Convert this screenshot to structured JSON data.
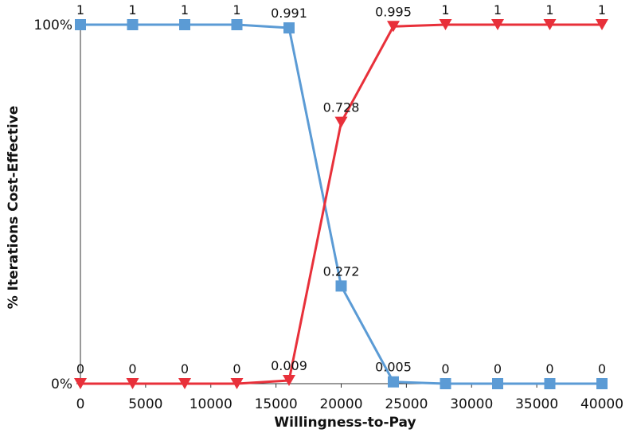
{
  "chart_data": {
    "type": "line",
    "title": "",
    "xlabel": "Willingness-to-Pay",
    "ylabel": "% Iterations Cost-Effective",
    "xlim": [
      0,
      40000
    ],
    "ylim": [
      0,
      1
    ],
    "x": [
      0,
      4000,
      8000,
      12000,
      16000,
      20000,
      24000,
      28000,
      32000,
      36000,
      40000
    ],
    "x_ticks": [
      0,
      5000,
      10000,
      15000,
      20000,
      25000,
      30000,
      35000,
      40000
    ],
    "x_tick_labels": [
      "0",
      "5000",
      "10000",
      "15000",
      "20000",
      "25000",
      "30000",
      "35000",
      "40000"
    ],
    "y_ticks": [
      0,
      1
    ],
    "y_tick_labels": [
      "0%",
      "100%"
    ],
    "grid": false,
    "legend": "none",
    "series": [
      {
        "marker": "square",
        "color": "#5B9BD5",
        "values": [
          1,
          1,
          1,
          1,
          0.991,
          0.272,
          0.005,
          0,
          0,
          0,
          0
        ],
        "labels": [
          "1",
          "1",
          "1",
          "1",
          "0.991",
          "0.272",
          "0.005",
          "0",
          "0",
          "0",
          "0"
        ]
      },
      {
        "marker": "triangle-down",
        "color": "#E8303A",
        "values": [
          0,
          0,
          0,
          0,
          0.009,
          0.728,
          0.995,
          1,
          1,
          1,
          1
        ],
        "labels": [
          "0",
          "0",
          "0",
          "0",
          "0.009",
          "0.728",
          "0.995",
          "1",
          "1",
          "1",
          "1"
        ]
      }
    ]
  }
}
